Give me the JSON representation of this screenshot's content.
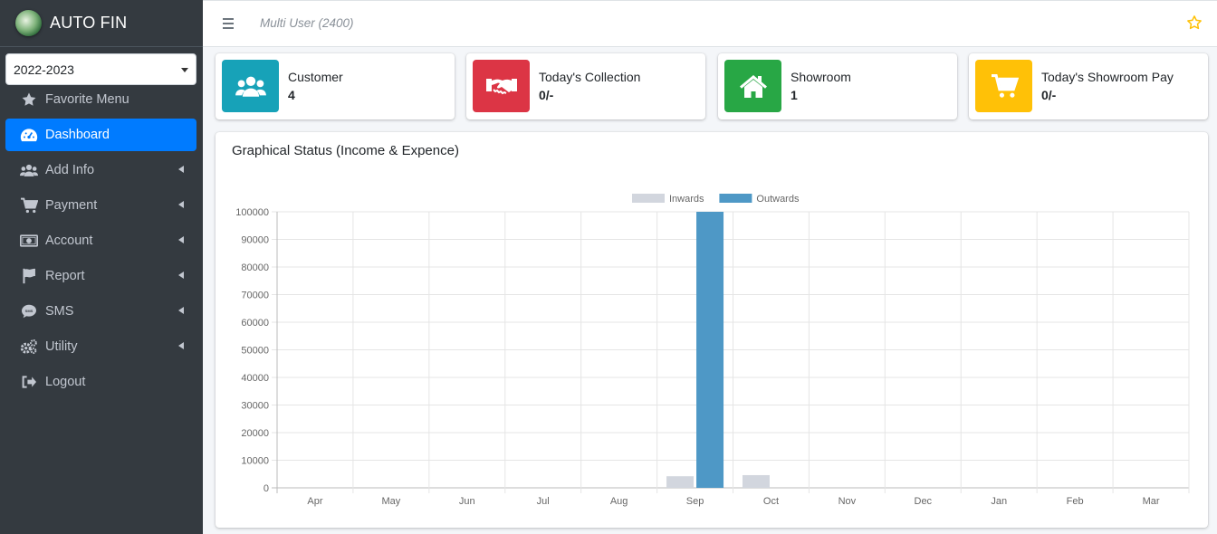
{
  "app": {
    "title": "AUTO FIN"
  },
  "sidebar": {
    "year_selected": "2022-2023",
    "items": [
      {
        "label": "Favorite Menu",
        "icon": "star-icon",
        "has_children": false,
        "active": false
      },
      {
        "label": "Dashboard",
        "icon": "dashboard-icon",
        "has_children": false,
        "active": true
      },
      {
        "label": "Add Info",
        "icon": "users-icon",
        "has_children": true,
        "active": false
      },
      {
        "label": "Payment",
        "icon": "cart-icon",
        "has_children": true,
        "active": false
      },
      {
        "label": "Account",
        "icon": "money-icon",
        "has_children": true,
        "active": false
      },
      {
        "label": "Report",
        "icon": "flag-icon",
        "has_children": true,
        "active": false
      },
      {
        "label": "SMS",
        "icon": "sms-icon",
        "has_children": true,
        "active": false
      },
      {
        "label": "Utility",
        "icon": "cogs-icon",
        "has_children": true,
        "active": false
      },
      {
        "label": "Logout",
        "icon": "logout-icon",
        "has_children": false,
        "active": false
      }
    ]
  },
  "header": {
    "user_label": "Multi User (2400)"
  },
  "info_boxes": [
    {
      "label": "Customer",
      "value": "4",
      "color": "#17a2b8",
      "icon": "users-icon"
    },
    {
      "label": "Today's Collection",
      "value": "0/-",
      "color": "#dc3545",
      "icon": "handshake-icon"
    },
    {
      "label": "Showroom",
      "value": "1",
      "color": "#28a745",
      "icon": "home-icon"
    },
    {
      "label": "Today's Showroom Pay",
      "value": "0/-",
      "color": "#ffc107",
      "icon": "cart-icon"
    }
  ],
  "card": {
    "title": "Graphical Status (Income & Expence)"
  },
  "chart_data": {
    "type": "bar",
    "categories": [
      "Apr",
      "May",
      "Jun",
      "Jul",
      "Aug",
      "Sep",
      "Oct",
      "Nov",
      "Dec",
      "Jan",
      "Feb",
      "Mar"
    ],
    "series": [
      {
        "name": "Inwards",
        "color": "#d2d6de",
        "values": [
          0,
          0,
          0,
          0,
          0,
          4200,
          4600,
          0,
          0,
          0,
          0,
          0
        ]
      },
      {
        "name": "Outwards",
        "color": "#4e98c6",
        "values": [
          0,
          0,
          0,
          0,
          0,
          100000,
          0,
          0,
          0,
          0,
          0,
          0
        ]
      }
    ],
    "ylim": [
      0,
      100000
    ],
    "yticks": [
      0,
      10000,
      20000,
      30000,
      40000,
      50000,
      60000,
      70000,
      80000,
      90000,
      100000
    ],
    "legend": "top-center",
    "grid": true
  }
}
